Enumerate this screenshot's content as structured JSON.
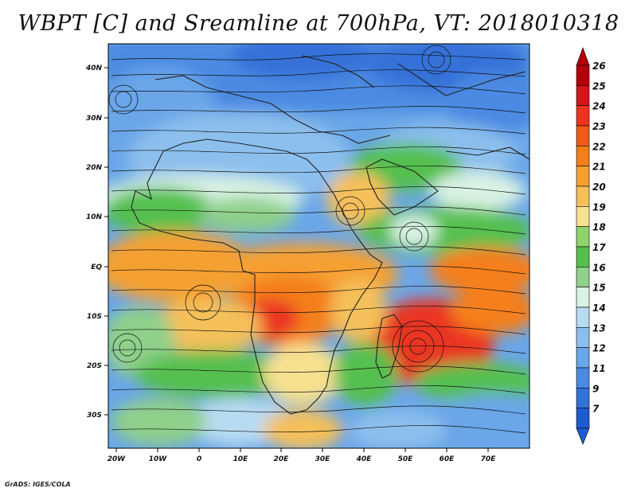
{
  "title": "WBPT [C] and Sreamline at 700hPa, VT: 2018010318",
  "credit": "GrADS: IGES/COLA",
  "map": {
    "lat_ticks": [
      "40N",
      "30N",
      "20N",
      "10N",
      "EQ",
      "10S",
      "20S",
      "30S"
    ],
    "lon_ticks": [
      "20W",
      "10W",
      "0",
      "10E",
      "20E",
      "30E",
      "40E",
      "50E",
      "60E",
      "70E"
    ]
  },
  "colorbar": {
    "labels": [
      "26",
      "25",
      "24",
      "23",
      "22",
      "21",
      "20",
      "19",
      "18",
      "17",
      "16",
      "15",
      "14",
      "13",
      "12",
      "11",
      "9",
      "7"
    ],
    "colors": [
      "#b3000a",
      "#d2161b",
      "#ea3420",
      "#f05a1a",
      "#f47f1a",
      "#f5a030",
      "#f5c05a",
      "#f7e090",
      "#8ed36b",
      "#55c04f",
      "#8fd08a",
      "#d8f2e3",
      "#b7dbf2",
      "#8cbfed",
      "#6aa6e8",
      "#4c8ae2",
      "#3471d8",
      "#1f5bd0"
    ]
  }
}
